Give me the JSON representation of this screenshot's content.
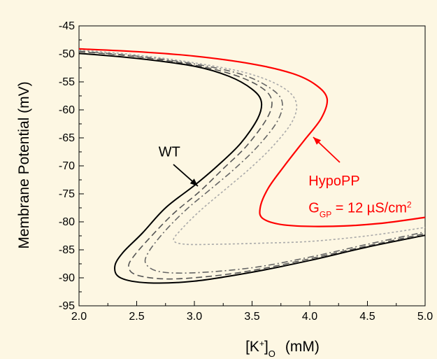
{
  "chart_data": {
    "type": "line",
    "xlabel_main": "[K",
    "xlabel_sup": "+",
    "xlabel_close": "]",
    "xlabel_sub": "O",
    "xlabel_unit": "(mM)",
    "ylabel": "Membrane Potential  (mV)",
    "xlim": [
      2.0,
      5.0
    ],
    "ylim": [
      -95,
      -45
    ],
    "xticks": [
      "2.0",
      "2.5",
      "3.0",
      "3.5",
      "4.0",
      "4.5",
      "5.0"
    ],
    "yticks": [
      "-45",
      "-50",
      "-55",
      "-60",
      "-65",
      "-70",
      "-75",
      "-80",
      "-85",
      "-90",
      "-95"
    ],
    "grid": false,
    "series": [
      {
        "name": "WT",
        "style": "solid",
        "color": "#000000",
        "points": [
          [
            2.0,
            -49.9
          ],
          [
            2.5,
            -50.8
          ],
          [
            3.0,
            -52.2
          ],
          [
            3.3,
            -54.0
          ],
          [
            3.5,
            -56.3
          ],
          [
            3.58,
            -58.5
          ],
          [
            3.55,
            -61.5
          ],
          [
            3.4,
            -66.0
          ],
          [
            3.2,
            -70.0
          ],
          [
            3.0,
            -73.5
          ],
          [
            2.75,
            -77.5
          ],
          [
            2.55,
            -82.0
          ],
          [
            2.38,
            -85.5
          ],
          [
            2.31,
            -88.0
          ],
          [
            2.36,
            -90.0
          ],
          [
            2.6,
            -90.9
          ],
          [
            3.0,
            -90.6
          ],
          [
            3.5,
            -89.0
          ],
          [
            4.0,
            -86.9
          ],
          [
            4.5,
            -84.5
          ],
          [
            5.0,
            -82.4
          ]
        ]
      },
      {
        "name": "",
        "style": "longdash",
        "color": "#555555",
        "points": [
          [
            2.0,
            -49.6
          ],
          [
            2.5,
            -50.5
          ],
          [
            3.0,
            -52.0
          ],
          [
            3.35,
            -53.8
          ],
          [
            3.58,
            -56.0
          ],
          [
            3.67,
            -58.3
          ],
          [
            3.63,
            -61.5
          ],
          [
            3.45,
            -66.5
          ],
          [
            3.25,
            -70.5
          ],
          [
            3.05,
            -74.5
          ],
          [
            2.82,
            -78.5
          ],
          [
            2.63,
            -82.5
          ],
          [
            2.48,
            -86.0
          ],
          [
            2.43,
            -88.0
          ],
          [
            2.5,
            -89.5
          ],
          [
            2.75,
            -90.2
          ],
          [
            3.1,
            -89.8
          ],
          [
            3.5,
            -88.7
          ],
          [
            4.0,
            -86.6
          ],
          [
            4.5,
            -84.3
          ],
          [
            5.0,
            -82.1
          ]
        ]
      },
      {
        "name": "",
        "style": "dashdot",
        "color": "#666666",
        "points": [
          [
            2.0,
            -49.5
          ],
          [
            2.5,
            -50.4
          ],
          [
            3.0,
            -51.8
          ],
          [
            3.4,
            -53.6
          ],
          [
            3.65,
            -56.0
          ],
          [
            3.76,
            -58.5
          ],
          [
            3.72,
            -62.0
          ],
          [
            3.55,
            -66.5
          ],
          [
            3.35,
            -70.5
          ],
          [
            3.15,
            -74.0
          ],
          [
            2.92,
            -78.0
          ],
          [
            2.73,
            -82.0
          ],
          [
            2.6,
            -85.5
          ],
          [
            2.58,
            -87.5
          ],
          [
            2.7,
            -88.9
          ],
          [
            3.0,
            -89.1
          ],
          [
            3.5,
            -88.2
          ],
          [
            4.0,
            -86.3
          ],
          [
            4.5,
            -84.0
          ],
          [
            5.0,
            -81.8
          ]
        ]
      },
      {
        "name": "",
        "style": "dotted",
        "color": "#aaaaaa",
        "points": [
          [
            2.0,
            -49.3
          ],
          [
            2.5,
            -50.2
          ],
          [
            3.0,
            -51.6
          ],
          [
            3.45,
            -53.4
          ],
          [
            3.75,
            -55.8
          ],
          [
            3.88,
            -58.5
          ],
          [
            3.85,
            -62.0
          ],
          [
            3.68,
            -66.5
          ],
          [
            3.48,
            -70.5
          ],
          [
            3.28,
            -74.0
          ],
          [
            3.05,
            -78.0
          ],
          [
            2.88,
            -81.5
          ],
          [
            2.82,
            -83.3
          ],
          [
            2.92,
            -84.0
          ],
          [
            3.2,
            -84.0
          ],
          [
            3.6,
            -83.8
          ],
          [
            4.0,
            -83.5
          ],
          [
            4.5,
            -82.5
          ],
          [
            5.0,
            -81.0
          ]
        ]
      },
      {
        "name": "HypoPP",
        "style": "solid",
        "color": "#ff0000",
        "points": [
          [
            2.0,
            -49.1
          ],
          [
            2.5,
            -49.6
          ],
          [
            3.0,
            -50.4
          ],
          [
            3.5,
            -51.8
          ],
          [
            3.85,
            -53.5
          ],
          [
            4.05,
            -55.5
          ],
          [
            4.15,
            -58.0
          ],
          [
            4.1,
            -61.5
          ],
          [
            3.95,
            -65.5
          ],
          [
            3.78,
            -70.0
          ],
          [
            3.64,
            -74.0
          ],
          [
            3.57,
            -77.5
          ],
          [
            3.6,
            -79.5
          ],
          [
            3.8,
            -80.6
          ],
          [
            4.2,
            -80.8
          ],
          [
            4.6,
            -80.3
          ],
          [
            5.0,
            -79.2
          ]
        ]
      }
    ],
    "annotations": [
      {
        "text": "WT",
        "x": 2.72,
        "y": -68.3
      },
      {
        "text": "HypoPP",
        "x": 4.02,
        "y": -73.5
      },
      {
        "label_main": "G",
        "label_sub": "GP",
        "label_rest": " = 12 µS/cm",
        "label_sup": "2",
        "x": 4.02,
        "y": -78.3
      }
    ]
  }
}
